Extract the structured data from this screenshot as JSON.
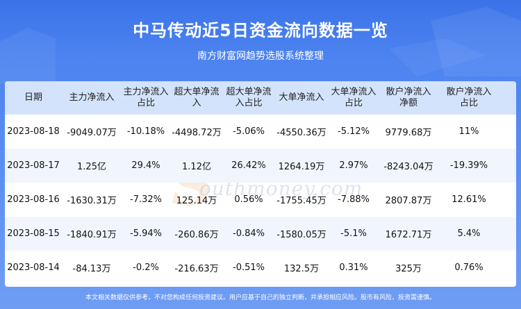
{
  "title": "中马传动近5日资金流向数据一览",
  "subtitle": "南方财富网趋势选股系统整理",
  "watermark": {
    "cn": "南方财富网",
    "en": "outhmoney.com",
    "logo": "S"
  },
  "table": {
    "headers": [
      [
        "日期"
      ],
      [
        "主力净流入"
      ],
      [
        "主力净流入",
        "占比"
      ],
      [
        "超大单净流",
        "入"
      ],
      [
        "超大单净流",
        "入占比"
      ],
      [
        "大单净流入"
      ],
      [
        "大单净流入",
        "占比"
      ],
      [
        "散户净流入",
        "净额"
      ],
      [
        "散户净流入",
        "占比"
      ]
    ],
    "rows": [
      [
        "2023-08-18",
        "-9049.07万",
        "-10.18%",
        "-4498.72万",
        "-5.06%",
        "-4550.36万",
        "-5.12%",
        "9779.68万",
        "11%"
      ],
      [
        "2023-08-17",
        "1.25亿",
        "29.4%",
        "1.12亿",
        "26.42%",
        "1264.19万",
        "2.97%",
        "-8243.04万",
        "-19.39%"
      ],
      [
        "2023-08-16",
        "-1630.31万",
        "-7.32%",
        "125.14万",
        "0.56%",
        "-1755.45万",
        "-7.88%",
        "2807.87万",
        "12.61%"
      ],
      [
        "2023-08-15",
        "-1840.91万",
        "-5.94%",
        "-260.86万",
        "-0.84%",
        "-1580.05万",
        "-5.1%",
        "1672.71万",
        "5.4%"
      ],
      [
        "2023-08-14",
        "-84.13万",
        "-0.2%",
        "-216.63万",
        "-0.51%",
        "132.5万",
        "0.31%",
        "325万",
        "0.76%"
      ]
    ]
  },
  "footer": "本文相关数据仅供参考，不对您构成任何投资建议。用户应基于自己的独立判断，并承担相应风险。股市有风险，投资需谨慎。",
  "colors": {
    "header_bg": "#d3e3fb",
    "row_alt": "#f1f6fe",
    "accent": "#3b72e8"
  }
}
